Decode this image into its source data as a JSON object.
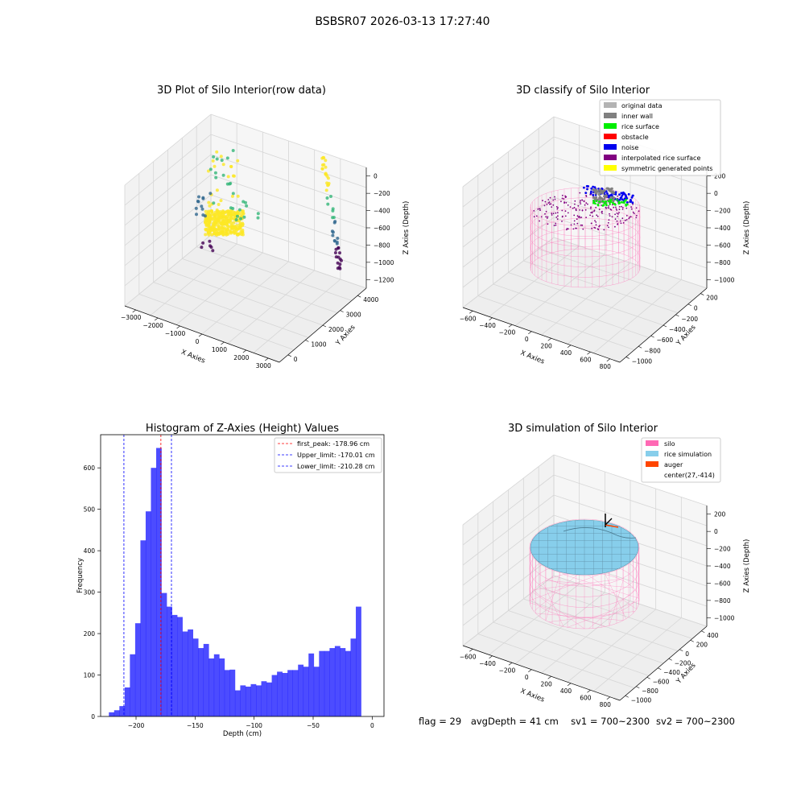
{
  "page_title": "BSBSR07 2026-03-13 17:27:40",
  "footer": {
    "flag": "flag = 29",
    "avg_depth": "avgDepth = 41 cm",
    "sv1": "sv1 = 700~2300",
    "sv2": "sv2 = 700~2300"
  },
  "chart_data": [
    {
      "id": "raw",
      "type": "scatter",
      "title": "3D Plot of Silo Interior(row data)",
      "xlabel": "X Axies",
      "ylabel": "Y Axies",
      "zlabel": "Z Axies (Depth)",
      "xticks": [
        "−3000",
        "−2000",
        "−1000",
        "0",
        "1000",
        "2000",
        "3000"
      ],
      "yticks": [
        "0",
        "1000",
        "2000",
        "3000",
        "4000"
      ],
      "zticks": [
        "0",
        "−200",
        "−400",
        "−600",
        "−800",
        "−1000",
        "−1200"
      ],
      "colormap": [
        "#440154",
        "#31688e",
        "#35b779",
        "#fde725"
      ]
    },
    {
      "id": "classify",
      "type": "scatter",
      "title": "3D classify of Silo Interior",
      "xlabel": "X Axies",
      "ylabel": "Y Axies",
      "zlabel": "Z Axies (Depth)",
      "xticks": [
        "−600",
        "−400",
        "−200",
        "0",
        "200",
        "400",
        "600",
        "800"
      ],
      "yticks": [
        "−1000",
        "−800",
        "−600",
        "−400",
        "−200",
        "0",
        "200"
      ],
      "zticks": [
        "200",
        "0",
        "−200",
        "−400",
        "−600",
        "−800",
        "−1000"
      ],
      "legend": [
        {
          "label": "original data",
          "color": "#b3b3b3"
        },
        {
          "label": "inner wall",
          "color": "#808080"
        },
        {
          "label": "rice surface",
          "color": "#00ee00"
        },
        {
          "label": "obstacle",
          "color": "#ff0000"
        },
        {
          "label": "noise",
          "color": "#0000ee"
        },
        {
          "label": "interpolated rice surface",
          "color": "#800080"
        },
        {
          "label": "symmetric generated points",
          "color": "#ffff00"
        }
      ]
    },
    {
      "id": "histogram",
      "type": "bar",
      "title": "Histogram of Z-Axies (Height) Values",
      "xlabel": "Depth (cm)",
      "ylabel": "Frequency",
      "xlim": [
        -230,
        10
      ],
      "ylim": [
        0,
        680
      ],
      "xticks": [
        -200,
        -150,
        -100,
        -50,
        0
      ],
      "xtick_labels": [
        "−200",
        "−150",
        "−100",
        "−50",
        "0"
      ],
      "yticks": [
        0,
        100,
        200,
        300,
        400,
        500,
        600
      ],
      "bin_start": -223,
      "bin_width": 4.45,
      "values": [
        10,
        15,
        25,
        70,
        150,
        225,
        425,
        495,
        600,
        648,
        298,
        265,
        245,
        240,
        205,
        210,
        188,
        165,
        175,
        140,
        150,
        140,
        112,
        113,
        63,
        75,
        72,
        78,
        75,
        85,
        82,
        100,
        108,
        105,
        112,
        112,
        125,
        120,
        152,
        120,
        158,
        158,
        165,
        170,
        165,
        158,
        188,
        265
      ],
      "color": "#0000ff",
      "vlines": [
        {
          "label": "first_peak: -178.96 cm",
          "x": -178.96,
          "color": "#ff0000"
        },
        {
          "label": "Upper_limit: -170.01 cm",
          "x": -170.01,
          "color": "#0000ff"
        },
        {
          "label": "Lower_limit: -210.28 cm",
          "x": -210.28,
          "color": "#0000ff"
        }
      ]
    },
    {
      "id": "simulation",
      "type": "scatter",
      "title": "3D simulation of Silo Interior",
      "xlabel": "X Axies",
      "ylabel": "Y Axies",
      "zlabel": "Z Axies (Depth)",
      "xticks": [
        "−600",
        "−400",
        "−200",
        "0",
        "200",
        "400",
        "600",
        "800"
      ],
      "yticks": [
        "−1000",
        "−800",
        "−600",
        "−400",
        "−200",
        "0",
        "200",
        "400"
      ],
      "zticks": [
        "200",
        "0",
        "−200",
        "−400",
        "−600",
        "−800",
        "−1000"
      ],
      "legend": [
        {
          "label": "silo",
          "color": "#ff69b4"
        },
        {
          "label": "rice simulation",
          "color": "#87ceeb"
        },
        {
          "label": "auger",
          "color": "#ff4500"
        },
        {
          "label": "center(27,-414)",
          "color": ""
        }
      ]
    }
  ]
}
